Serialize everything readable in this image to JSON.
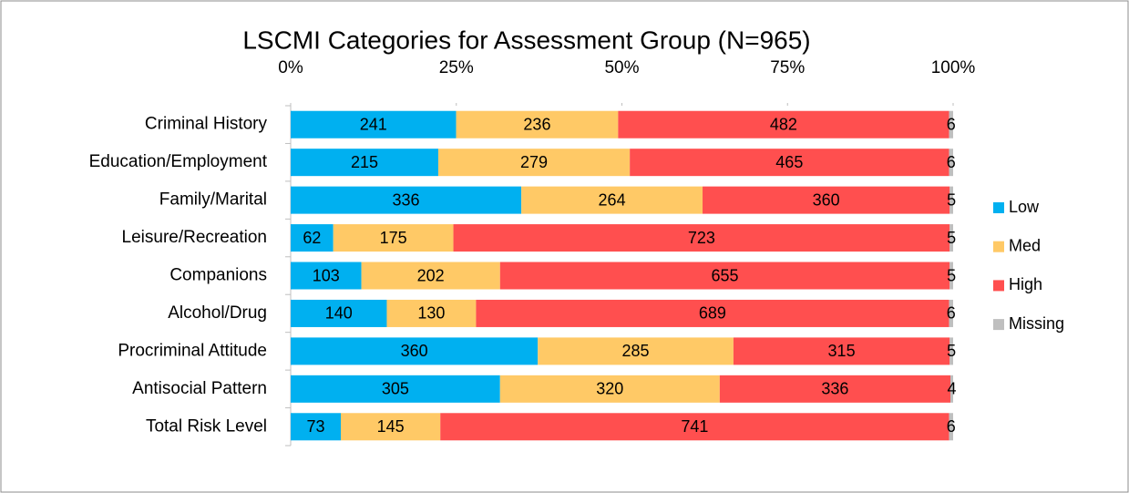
{
  "chart_data": {
    "type": "bar",
    "orientation": "horizontal",
    "stacked": "percent",
    "title": "LSCMI Categories for Assessment Group (N=965)",
    "categories": [
      "Criminal History",
      "Education/Employment",
      "Family/Marital",
      "Leisure/Recreation",
      "Companions",
      "Alcohol/Drug",
      "Procriminal Attitude",
      "Antisocial Pattern",
      "Total Risk Level"
    ],
    "series": [
      {
        "name": "Low",
        "color": "#00b0f0",
        "values": [
          241,
          215,
          336,
          62,
          103,
          140,
          360,
          305,
          73
        ]
      },
      {
        "name": "Med",
        "color": "#ffc966",
        "values": [
          236,
          279,
          264,
          175,
          202,
          130,
          285,
          320,
          145
        ]
      },
      {
        "name": "High",
        "color": "#ff4f4f",
        "values": [
          482,
          465,
          360,
          723,
          655,
          689,
          315,
          336,
          741
        ]
      },
      {
        "name": "Missing",
        "color": "#bfbfbf",
        "values": [
          6,
          6,
          5,
          5,
          5,
          6,
          5,
          4,
          6
        ]
      }
    ],
    "xlim": [
      0,
      100
    ],
    "xticks": [
      {
        "value": 0,
        "label": "0%"
      },
      {
        "value": 25,
        "label": "25%"
      },
      {
        "value": 50,
        "label": "50%"
      },
      {
        "value": 75,
        "label": "75%"
      },
      {
        "value": 100,
        "label": "100%"
      }
    ],
    "legend": "right"
  }
}
